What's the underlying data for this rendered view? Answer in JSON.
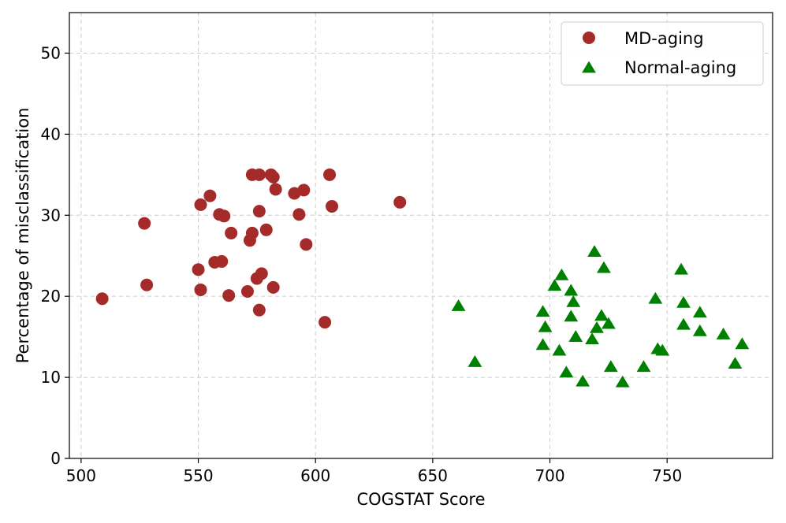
{
  "chart_data": {
    "type": "scatter",
    "title": "",
    "xlabel": "COGSTAT Score",
    "ylabel": "Percentage of misclassification",
    "xlim": [
      495,
      795
    ],
    "ylim": [
      0,
      55
    ],
    "xticks": [
      500,
      550,
      600,
      650,
      700,
      750
    ],
    "yticks": [
      0,
      10,
      20,
      30,
      40,
      50
    ],
    "grid": true,
    "legend_position": "top-right",
    "series": [
      {
        "name": "MD-aging",
        "marker": "circle",
        "color": "#a52a2a",
        "points": [
          [
            509,
            19.7
          ],
          [
            527,
            29.0
          ],
          [
            528,
            21.4
          ],
          [
            550,
            23.3
          ],
          [
            551,
            20.8
          ],
          [
            551,
            31.3
          ],
          [
            555,
            32.4
          ],
          [
            557,
            24.2
          ],
          [
            559,
            30.1
          ],
          [
            560,
            24.3
          ],
          [
            561,
            29.9
          ],
          [
            563,
            20.1
          ],
          [
            564,
            27.8
          ],
          [
            571,
            20.6
          ],
          [
            572,
            26.9
          ],
          [
            573,
            27.8
          ],
          [
            573,
            35.0
          ],
          [
            575,
            22.2
          ],
          [
            576,
            35.0
          ],
          [
            576,
            18.3
          ],
          [
            576,
            30.5
          ],
          [
            577,
            22.8
          ],
          [
            579,
            28.2
          ],
          [
            581,
            35.0
          ],
          [
            582,
            34.7
          ],
          [
            582,
            21.1
          ],
          [
            583,
            33.2
          ],
          [
            591,
            32.7
          ],
          [
            593,
            30.1
          ],
          [
            595,
            33.1
          ],
          [
            596,
            26.4
          ],
          [
            604,
            16.8
          ],
          [
            606,
            35.0
          ],
          [
            607,
            31.1
          ],
          [
            636,
            31.6
          ]
        ]
      },
      {
        "name": "Normal-aging",
        "marker": "triangle",
        "color": "#008000",
        "points": [
          [
            661,
            18.8
          ],
          [
            668,
            11.9
          ],
          [
            697,
            18.1
          ],
          [
            698,
            16.2
          ],
          [
            697,
            14.0
          ],
          [
            702,
            21.3
          ],
          [
            704,
            13.3
          ],
          [
            705,
            22.6
          ],
          [
            707,
            10.6
          ],
          [
            709,
            20.7
          ],
          [
            710,
            19.3
          ],
          [
            709,
            17.5
          ],
          [
            711,
            15.0
          ],
          [
            714,
            9.5
          ],
          [
            718,
            14.7
          ],
          [
            719,
            25.5
          ],
          [
            720,
            16.1
          ],
          [
            722,
            17.6
          ],
          [
            723,
            23.5
          ],
          [
            725,
            16.6
          ],
          [
            726,
            11.3
          ],
          [
            731,
            9.4
          ],
          [
            740,
            11.3
          ],
          [
            745,
            19.7
          ],
          [
            746,
            13.5
          ],
          [
            748,
            13.3
          ],
          [
            756,
            23.3
          ],
          [
            757,
            19.2
          ],
          [
            757,
            16.5
          ],
          [
            764,
            18.0
          ],
          [
            764,
            15.7
          ],
          [
            774,
            15.3
          ],
          [
            779,
            11.7
          ],
          [
            782,
            14.1
          ]
        ]
      }
    ]
  }
}
